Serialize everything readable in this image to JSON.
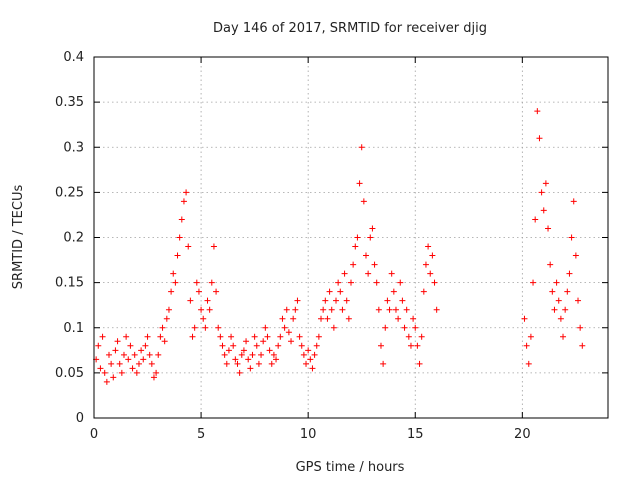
{
  "chart_data": {
    "type": "scatter",
    "title": "Day 146 of 2017, SRMTID for receiver djig",
    "xlabel": "GPS time / hours",
    "ylabel": "SRMTID / TECUs",
    "xlim": [
      0,
      24
    ],
    "ylim": [
      0,
      0.4
    ],
    "xticks": [
      0,
      5,
      10,
      15,
      20
    ],
    "xtick_labels": [
      "0",
      "5",
      "10",
      "15",
      "20"
    ],
    "yticks": [
      0,
      0.05,
      0.1,
      0.15,
      0.2,
      0.25,
      0.3,
      0.35,
      0.4
    ],
    "ytick_labels": [
      "0",
      "0.05",
      "0.1",
      "0.15",
      "0.2",
      "0.25",
      "0.3",
      "0.35",
      "0.4"
    ],
    "grid": true,
    "marker": "+",
    "color": "#ff0000",
    "series": [
      {
        "name": "SRMTID",
        "points": [
          [
            0.1,
            0.065
          ],
          [
            0.2,
            0.08
          ],
          [
            0.3,
            0.055
          ],
          [
            0.4,
            0.09
          ],
          [
            0.5,
            0.05
          ],
          [
            0.6,
            0.04
          ],
          [
            0.7,
            0.07
          ],
          [
            0.8,
            0.06
          ],
          [
            0.9,
            0.045
          ],
          [
            1.0,
            0.075
          ],
          [
            1.1,
            0.085
          ],
          [
            1.2,
            0.06
          ],
          [
            1.3,
            0.05
          ],
          [
            1.4,
            0.07
          ],
          [
            1.5,
            0.09
          ],
          [
            1.6,
            0.065
          ],
          [
            1.7,
            0.08
          ],
          [
            1.8,
            0.055
          ],
          [
            1.9,
            0.07
          ],
          [
            2.0,
            0.05
          ],
          [
            2.1,
            0.06
          ],
          [
            2.2,
            0.075
          ],
          [
            2.3,
            0.065
          ],
          [
            2.4,
            0.08
          ],
          [
            2.5,
            0.09
          ],
          [
            2.6,
            0.07
          ],
          [
            2.7,
            0.06
          ],
          [
            2.8,
            0.045
          ],
          [
            2.9,
            0.05
          ],
          [
            3.0,
            0.07
          ],
          [
            3.1,
            0.09
          ],
          [
            3.2,
            0.1
          ],
          [
            3.3,
            0.085
          ],
          [
            3.4,
            0.11
          ],
          [
            3.5,
            0.12
          ],
          [
            3.6,
            0.14
          ],
          [
            3.7,
            0.16
          ],
          [
            3.8,
            0.15
          ],
          [
            3.9,
            0.18
          ],
          [
            4.0,
            0.2
          ],
          [
            4.1,
            0.22
          ],
          [
            4.2,
            0.24
          ],
          [
            4.3,
            0.25
          ],
          [
            4.4,
            0.19
          ],
          [
            4.5,
            0.13
          ],
          [
            4.6,
            0.09
          ],
          [
            4.7,
            0.1
          ],
          [
            4.8,
            0.15
          ],
          [
            4.9,
            0.14
          ],
          [
            5.0,
            0.12
          ],
          [
            5.1,
            0.11
          ],
          [
            5.2,
            0.1
          ],
          [
            5.3,
            0.13
          ],
          [
            5.4,
            0.12
          ],
          [
            5.5,
            0.15
          ],
          [
            5.6,
            0.19
          ],
          [
            5.7,
            0.14
          ],
          [
            5.8,
            0.1
          ],
          [
            5.9,
            0.09
          ],
          [
            6.0,
            0.08
          ],
          [
            6.1,
            0.07
          ],
          [
            6.2,
            0.06
          ],
          [
            6.3,
            0.075
          ],
          [
            6.4,
            0.09
          ],
          [
            6.5,
            0.08
          ],
          [
            6.6,
            0.065
          ],
          [
            6.7,
            0.06
          ],
          [
            6.8,
            0.05
          ],
          [
            6.9,
            0.07
          ],
          [
            7.0,
            0.075
          ],
          [
            7.1,
            0.085
          ],
          [
            7.2,
            0.065
          ],
          [
            7.3,
            0.055
          ],
          [
            7.4,
            0.07
          ],
          [
            7.5,
            0.09
          ],
          [
            7.6,
            0.08
          ],
          [
            7.7,
            0.06
          ],
          [
            7.8,
            0.07
          ],
          [
            7.9,
            0.085
          ],
          [
            8.0,
            0.1
          ],
          [
            8.1,
            0.09
          ],
          [
            8.2,
            0.075
          ],
          [
            8.3,
            0.06
          ],
          [
            8.4,
            0.07
          ],
          [
            8.5,
            0.065
          ],
          [
            8.6,
            0.08
          ],
          [
            8.7,
            0.09
          ],
          [
            8.8,
            0.11
          ],
          [
            8.9,
            0.1
          ],
          [
            9.0,
            0.12
          ],
          [
            9.1,
            0.095
          ],
          [
            9.2,
            0.085
          ],
          [
            9.3,
            0.11
          ],
          [
            9.4,
            0.12
          ],
          [
            9.5,
            0.13
          ],
          [
            9.6,
            0.09
          ],
          [
            9.7,
            0.08
          ],
          [
            9.8,
            0.07
          ],
          [
            9.9,
            0.06
          ],
          [
            10.0,
            0.075
          ],
          [
            10.1,
            0.065
          ],
          [
            10.2,
            0.055
          ],
          [
            10.3,
            0.07
          ],
          [
            10.4,
            0.08
          ],
          [
            10.5,
            0.09
          ],
          [
            10.6,
            0.11
          ],
          [
            10.7,
            0.12
          ],
          [
            10.8,
            0.13
          ],
          [
            10.9,
            0.11
          ],
          [
            11.0,
            0.14
          ],
          [
            11.1,
            0.12
          ],
          [
            11.2,
            0.1
          ],
          [
            11.3,
            0.13
          ],
          [
            11.4,
            0.15
          ],
          [
            11.5,
            0.14
          ],
          [
            11.6,
            0.12
          ],
          [
            11.7,
            0.16
          ],
          [
            11.8,
            0.13
          ],
          [
            11.9,
            0.11
          ],
          [
            12.0,
            0.15
          ],
          [
            12.1,
            0.17
          ],
          [
            12.2,
            0.19
          ],
          [
            12.3,
            0.2
          ],
          [
            12.4,
            0.26
          ],
          [
            12.5,
            0.3
          ],
          [
            12.6,
            0.24
          ],
          [
            12.7,
            0.18
          ],
          [
            12.8,
            0.16
          ],
          [
            12.9,
            0.2
          ],
          [
            13.0,
            0.21
          ],
          [
            13.1,
            0.17
          ],
          [
            13.2,
            0.15
          ],
          [
            13.3,
            0.12
          ],
          [
            13.4,
            0.08
          ],
          [
            13.5,
            0.06
          ],
          [
            13.6,
            0.1
          ],
          [
            13.7,
            0.13
          ],
          [
            13.8,
            0.12
          ],
          [
            13.9,
            0.16
          ],
          [
            14.0,
            0.14
          ],
          [
            14.1,
            0.12
          ],
          [
            14.2,
            0.11
          ],
          [
            14.3,
            0.15
          ],
          [
            14.4,
            0.13
          ],
          [
            14.5,
            0.1
          ],
          [
            14.6,
            0.12
          ],
          [
            14.7,
            0.09
          ],
          [
            14.8,
            0.08
          ],
          [
            14.9,
            0.11
          ],
          [
            15.0,
            0.1
          ],
          [
            15.1,
            0.08
          ],
          [
            15.2,
            0.06
          ],
          [
            15.3,
            0.09
          ],
          [
            15.4,
            0.14
          ],
          [
            15.5,
            0.17
          ],
          [
            15.6,
            0.19
          ],
          [
            15.7,
            0.16
          ],
          [
            15.8,
            0.18
          ],
          [
            15.9,
            0.15
          ],
          [
            16.0,
            0.12
          ],
          [
            20.1,
            0.11
          ],
          [
            20.2,
            0.08
          ],
          [
            20.3,
            0.06
          ],
          [
            20.4,
            0.09
          ],
          [
            20.5,
            0.15
          ],
          [
            20.6,
            0.22
          ],
          [
            20.7,
            0.34
          ],
          [
            20.8,
            0.31
          ],
          [
            20.9,
            0.25
          ],
          [
            21.0,
            0.23
          ],
          [
            21.1,
            0.26
          ],
          [
            21.2,
            0.21
          ],
          [
            21.3,
            0.17
          ],
          [
            21.4,
            0.14
          ],
          [
            21.5,
            0.12
          ],
          [
            21.6,
            0.15
          ],
          [
            21.7,
            0.13
          ],
          [
            21.8,
            0.11
          ],
          [
            21.9,
            0.09
          ],
          [
            22.0,
            0.12
          ],
          [
            22.1,
            0.14
          ],
          [
            22.2,
            0.16
          ],
          [
            22.3,
            0.2
          ],
          [
            22.4,
            0.24
          ],
          [
            22.5,
            0.18
          ],
          [
            22.6,
            0.13
          ],
          [
            22.7,
            0.1
          ],
          [
            22.8,
            0.08
          ]
        ]
      }
    ]
  }
}
